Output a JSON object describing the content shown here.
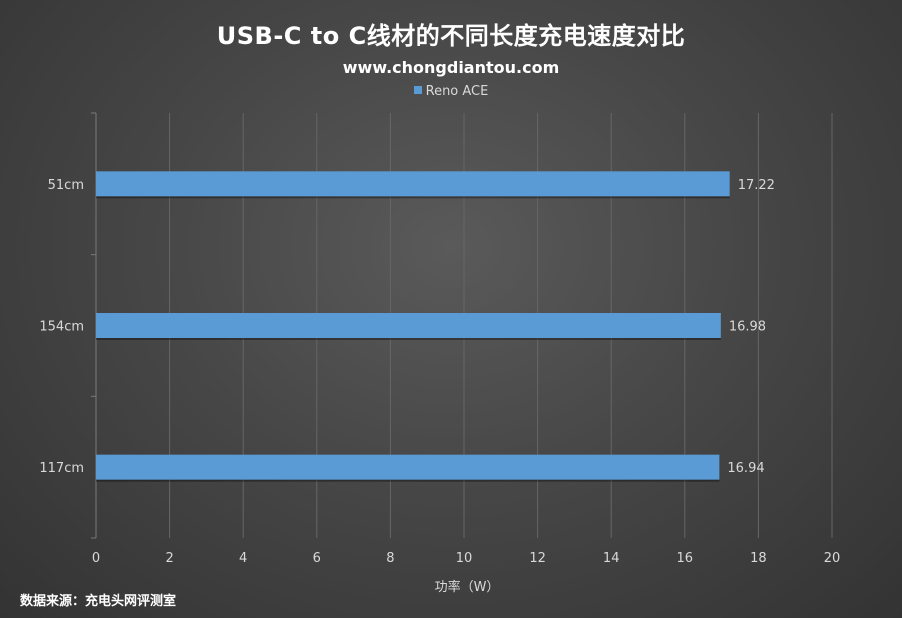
{
  "chart_data": {
    "type": "bar",
    "orientation": "horizontal",
    "title": "USB-C to C线材的不同长度充电速度对比",
    "subtitle": "www.chongdiantou.com",
    "categories": [
      "51cm",
      "154cm",
      "117cm"
    ],
    "series": [
      {
        "name": "Reno ACE",
        "values": [
          17.22,
          16.98,
          16.94
        ],
        "color": "#5b9bd5"
      }
    ],
    "xlabel": "功率（W）",
    "ylabel": "",
    "xlim": [
      0,
      20
    ],
    "xticks": [
      0,
      2,
      4,
      6,
      8,
      10,
      12,
      14,
      16,
      18,
      20
    ],
    "grid": "vertical",
    "legend_position": "top",
    "data_labels": true
  },
  "source_note": "数据来源：充电头网评测室",
  "colors": {
    "background": "#474747",
    "bar": "#5b9bd5",
    "grid": "#666666",
    "text": "#d9d9d9"
  }
}
